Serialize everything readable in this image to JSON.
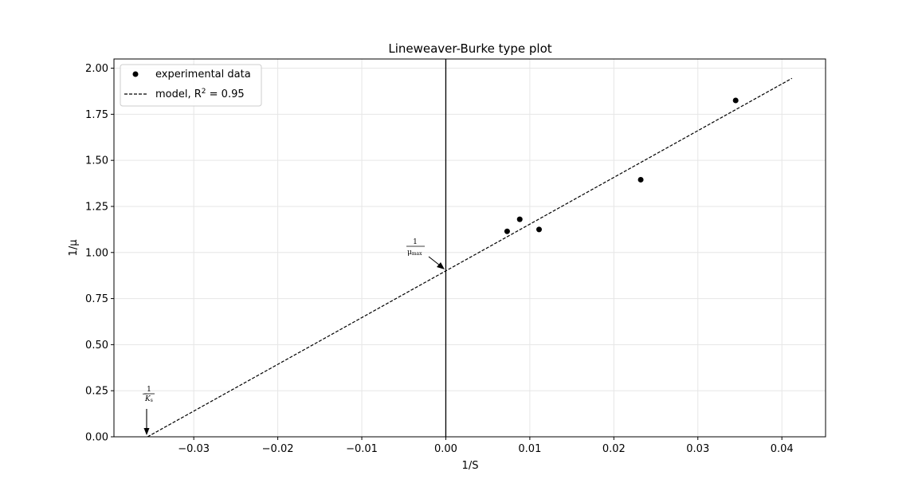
{
  "chart_data": {
    "type": "scatter",
    "title": "Lineweaver-Burke type plot",
    "xlabel": "1/S",
    "ylabel": "1/μ",
    "xlim": [
      -0.0395,
      0.0452
    ],
    "ylim": [
      0.0,
      2.05
    ],
    "xticks": [
      -0.03,
      -0.02,
      -0.01,
      0.0,
      0.01,
      0.02,
      0.03,
      0.04
    ],
    "xtick_labels": [
      "−0.03",
      "−0.02",
      "−0.01",
      "0.00",
      "0.01",
      "0.02",
      "0.03",
      "0.04"
    ],
    "yticks": [
      0.0,
      0.25,
      0.5,
      0.75,
      1.0,
      1.25,
      1.5,
      1.75,
      2.0
    ],
    "ytick_labels": [
      "0.00",
      "0.25",
      "0.50",
      "0.75",
      "1.00",
      "1.25",
      "1.50",
      "1.75",
      "2.00"
    ],
    "grid": true,
    "legend_position": "top-left",
    "series": [
      {
        "name": "experimental data",
        "kind": "scatter",
        "color": "#000000",
        "x": [
          0.0073,
          0.0088,
          0.0111,
          0.0232,
          0.0345
        ],
        "y": [
          1.115,
          1.18,
          1.125,
          1.395,
          1.825
        ]
      },
      {
        "name": "model, R² = 0.95",
        "kind": "line",
        "style": "dashed",
        "color": "#000000",
        "x": [
          -0.0355,
          0.0412
        ],
        "y": [
          0.0,
          1.945
        ]
      }
    ],
    "legend": {
      "scatter_label": "experimental data",
      "line_label_prefix": "model, R",
      "line_label_sup": "2",
      "line_label_suffix": " = 0.95"
    },
    "annotations": [
      {
        "id": "mumax",
        "numerator": "1",
        "denominator": "μ",
        "denominator_sub": "max",
        "points_to": {
          "x": 0.0,
          "y": 0.905
        }
      },
      {
        "id": "ks",
        "prefix": "−",
        "numerator": "1",
        "denominator": "K",
        "denominator_sub": "s",
        "points_to": {
          "x": -0.0355,
          "y": 0.0
        }
      }
    ],
    "vertical_line_x": 0.0
  }
}
